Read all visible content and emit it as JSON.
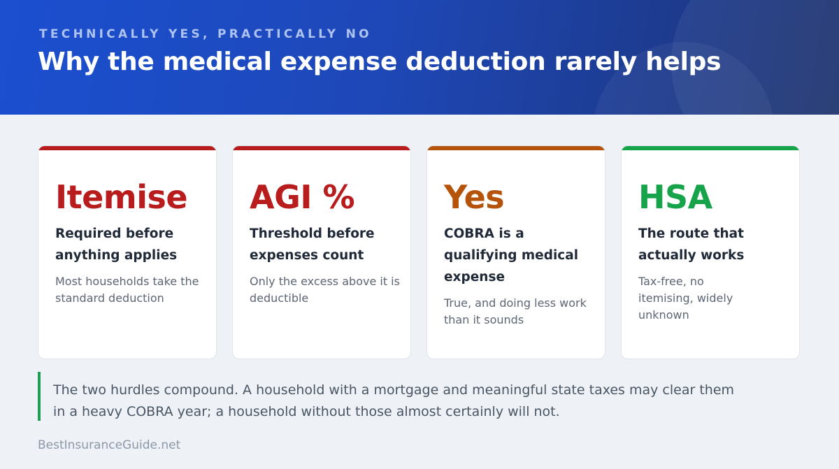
{
  "header": {
    "eyebrow": "TECHNICALLY YES, PRACTICALLY NO",
    "title": "Why the medical expense deduction rarely helps"
  },
  "cards": [
    {
      "big": "Itemise",
      "lead": "Required before anything applies",
      "sub": "Most households take the standard deduction",
      "accent": "#b91c1c"
    },
    {
      "big": "AGI %",
      "lead": "Threshold before expenses count",
      "sub": "Only the excess above it is deductible",
      "accent": "#b91c1c"
    },
    {
      "big": "Yes",
      "lead": "COBRA is a qualifying medical expense",
      "sub": "True, and doing less work than it sounds",
      "accent": "#b45309"
    },
    {
      "big": "HSA",
      "lead": "The route that actually works",
      "sub": "Tax-free, no itemising, widely unknown",
      "accent": "#16a34a"
    }
  ],
  "callout": {
    "text": "The two hurdles compound. A household with a mortgage and meaningful state taxes may clear them in a heavy COBRA year; a household without those almost certainly will not."
  },
  "footer": {
    "brand": "BestInsuranceGuide.net"
  }
}
